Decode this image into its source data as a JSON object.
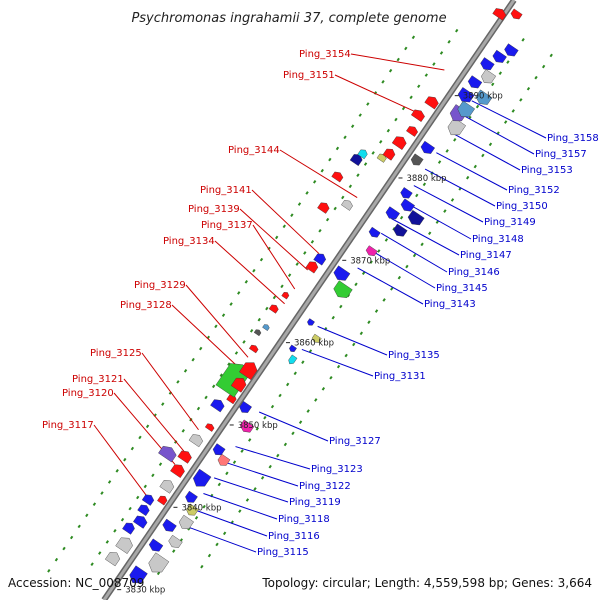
{
  "title": "Psychromonas ingrahamii 37, complete genome",
  "accession": "Accession: NC_008709",
  "topology": "Topology: circular; Length: 4,559,598 bp; Genes: 3,664",
  "colors": {
    "backbone": "#8a8a8a",
    "left_label": "#cc0000",
    "right_label": "#0000cc",
    "tick": "#2e8b22",
    "red": "#ff1010",
    "blue": "#1a1aee",
    "grey": "#c8c8c8",
    "green": "#33cc33",
    "magenta": "#ee22aa",
    "cyan": "#11ddee",
    "purple": "#7755cc",
    "khaki": "#cccc66",
    "navy": "#111199",
    "steel": "#5599cc",
    "dark": "#555555",
    "salmon": "#ff7777"
  },
  "kbp_markers": [
    {
      "label": "3830 kbp",
      "pos": 3830
    },
    {
      "label": "3840 kbp",
      "pos": 3840
    },
    {
      "label": "3850 kbp",
      "pos": 3850
    },
    {
      "label": "3860 kbp",
      "pos": 3860
    },
    {
      "label": "3870 kbp",
      "pos": 3870
    },
    {
      "label": "3880 kbp",
      "pos": 3880
    },
    {
      "label": "3890 kbp",
      "pos": 3890
    }
  ],
  "left_labels": [
    {
      "text": "Ping_3154",
      "pos": 3891.2
    },
    {
      "text": "Ping_3151",
      "pos": 3886.1
    },
    {
      "text": "Ping_3144",
      "pos": 3875.7
    },
    {
      "text": "Ping_3141",
      "pos": 3868.9
    },
    {
      "text": "Ping_3139",
      "pos": 3866.9
    },
    {
      "text": "Ping_3137",
      "pos": 3864.6
    },
    {
      "text": "Ping_3134",
      "pos": 3862.8
    },
    {
      "text": "Ping_3129",
      "pos": 3856.3
    },
    {
      "text": "Ping_3128",
      "pos": 3854.9
    },
    {
      "text": "Ping_3125",
      "pos": 3847.5
    },
    {
      "text": "Ping_3121",
      "pos": 3844.9
    },
    {
      "text": "Ping_3120",
      "pos": 3843.3
    },
    {
      "text": "Ping_3117",
      "pos": 3838.9
    }
  ],
  "right_labels": [
    {
      "text": "Ping_3158",
      "pos": 3890.2
    },
    {
      "text": "Ping_3157",
      "pos": 3888.5
    },
    {
      "text": "Ping_3153",
      "pos": 3886.4
    },
    {
      "text": "Ping_3152",
      "pos": 3883.9
    },
    {
      "text": "Ping_3150",
      "pos": 3881.9
    },
    {
      "text": "Ping_3149",
      "pos": 3879.9
    },
    {
      "text": "Ping_3148",
      "pos": 3878.0
    },
    {
      "text": "Ping_3147",
      "pos": 3875.9
    },
    {
      "text": "Ping_3146",
      "pos": 3874.1
    },
    {
      "text": "Ping_3145",
      "pos": 3872.1
    },
    {
      "text": "Ping_3143",
      "pos": 3869.9
    },
    {
      "text": "Ping_3135",
      "pos": 3862.8
    },
    {
      "text": "Ping_3131",
      "pos": 3860.0
    },
    {
      "text": "Ping_3127",
      "pos": 3852.4
    },
    {
      "text": "Ping_3123",
      "pos": 3848.2
    },
    {
      "text": "Ping_3122",
      "pos": 3846.3
    },
    {
      "text": "Ping_3119",
      "pos": 3844.4
    },
    {
      "text": "Ping_3118",
      "pos": 3842.5
    },
    {
      "text": "Ping_3116",
      "pos": 3840.6
    },
    {
      "text": "Ping_3115",
      "pos": 3838.7
    }
  ]
}
